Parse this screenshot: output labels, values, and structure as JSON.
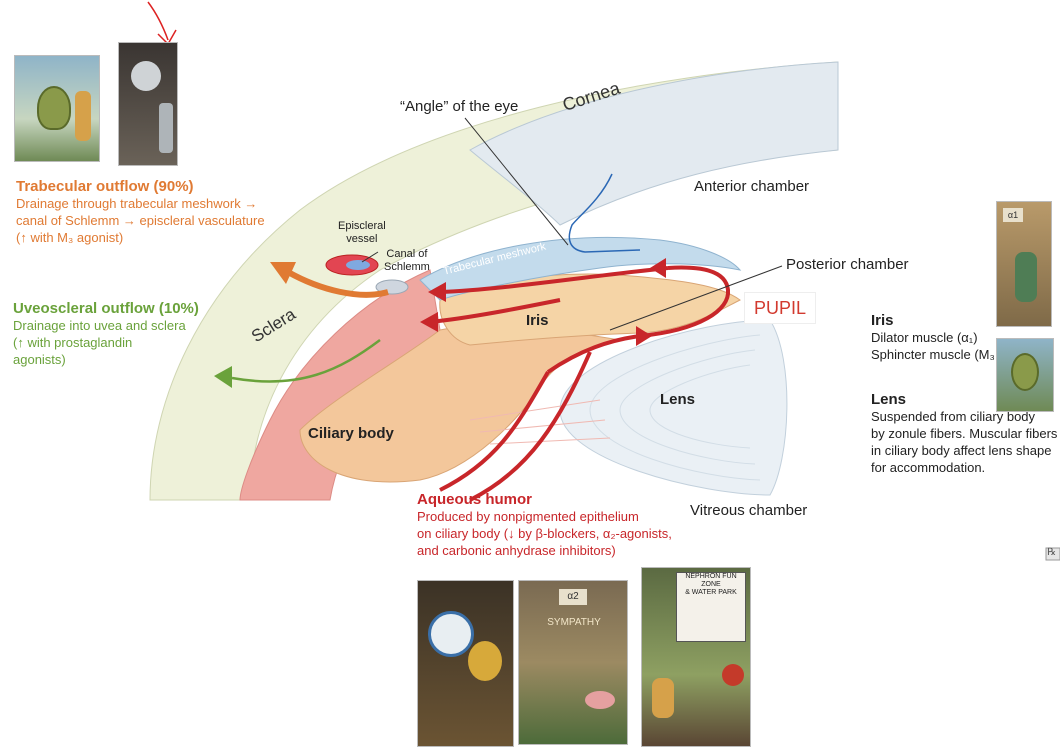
{
  "labels": {
    "angle": "“Angle” of the eye",
    "cornea": "Cornea",
    "anterior_chamber": "Anterior chamber",
    "posterior_chamber": "Posterior chamber",
    "pupil": "PUPIL",
    "episcleral_vessel": [
      "Episcleral",
      "vessel"
    ],
    "canal": [
      "Canal of",
      "Schlemm"
    ],
    "trabecular_meshwork": "Trabecular meshwork",
    "sclera": "Sclera",
    "iris": "Iris",
    "lens": "Lens",
    "ciliary_body": "Ciliary body",
    "vitreous_chamber": "Vitreous chamber",
    "rx_mark": "℞"
  },
  "trabecular": {
    "title": "Trabecular outflow (90%)",
    "lines": [
      "Drainage through trabecular meshwork →",
      "canal of Schlemm → episcleral vasculature",
      "(↑ with M₃ agonist)"
    ]
  },
  "uveoscleral": {
    "title": "Uveoscleral outflow (10%)",
    "lines": [
      "Drainage into uvea and sclera",
      "(↑ with prostaglandin",
      "agonists)"
    ]
  },
  "aqueous": {
    "title": "Aqueous humor",
    "lines": [
      "Produced by nonpigmented epithelium",
      "on ciliary body (↓ by β-blockers, α₂-agonists,",
      "and carbonic anhydrase inhibitors)"
    ]
  },
  "iris_note": {
    "title": "Iris",
    "lines": [
      "Dilator muscle (α₁)",
      "Sphincter muscle (M₃"
    ]
  },
  "lens_note": {
    "title": "Lens",
    "lines": [
      "Suspended from ciliary body",
      "by zonule fibers. Muscular fibers",
      "in ciliary body affect lens shape",
      "for accommodation."
    ]
  },
  "thumbnails": {
    "alpha1_sign": "α1",
    "alpha2_sign": "α2",
    "sympathy_sign": "SYMPATHY",
    "nephron_sign": [
      "NEPHRON FUN ZONE",
      "& WATER PARK"
    ]
  },
  "colors": {
    "orange": "#e07a33",
    "green": "#6aa23b",
    "red": "#c8262a",
    "cornea": "#dfe8ef",
    "sclera": "#eef1d9",
    "muscle": "#ee9f9a",
    "iris": "#f6cf9f",
    "meshwork": "#bfd7ea"
  }
}
